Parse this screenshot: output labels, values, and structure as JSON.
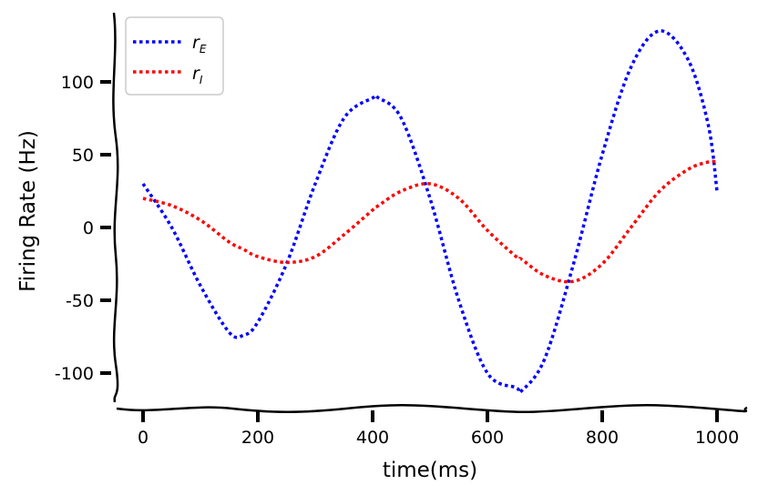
{
  "chart_data": {
    "type": "line",
    "xlabel": "time(ms)",
    "ylabel": "Firing Rate (Hz)",
    "xlim": [
      -50,
      1050
    ],
    "ylim": [
      -120,
      147
    ],
    "xticks": [
      0,
      200,
      400,
      600,
      800,
      1000
    ],
    "xtick_labels": [
      "0",
      "200",
      "400",
      "600",
      "800",
      "1000"
    ],
    "yticks": [
      100,
      50,
      0,
      -50,
      -100
    ],
    "ytick_labels": [
      "100",
      "50",
      "0",
      "-50",
      "-100"
    ],
    "grid": false,
    "legend_position": "top-left",
    "x": [
      0,
      50,
      100,
      150,
      175,
      200,
      250,
      300,
      350,
      400,
      410,
      450,
      500,
      550,
      600,
      650,
      660,
      700,
      750,
      800,
      850,
      900,
      950,
      985,
      1000
    ],
    "series": [
      {
        "name_main": "r",
        "name_sub": "E",
        "color": "#0000ff",
        "values": [
          30,
          0,
          -40,
          -72,
          -74,
          -65,
          -25,
          30,
          75,
          89,
          89,
          75,
          20,
          -50,
          -100,
          -110,
          -112,
          -90,
          -25,
          50,
          110,
          135,
          115,
          70,
          25
        ]
      },
      {
        "name_main": "r",
        "name_sub": "I",
        "color": "#ff0000",
        "values": [
          20,
          15,
          5,
          -10,
          -15,
          -20,
          -24,
          -20,
          -5,
          12,
          15,
          25,
          30,
          20,
          -2,
          -20,
          -22,
          -33,
          -37,
          -25,
          0,
          25,
          40,
          45,
          45
        ]
      }
    ]
  }
}
